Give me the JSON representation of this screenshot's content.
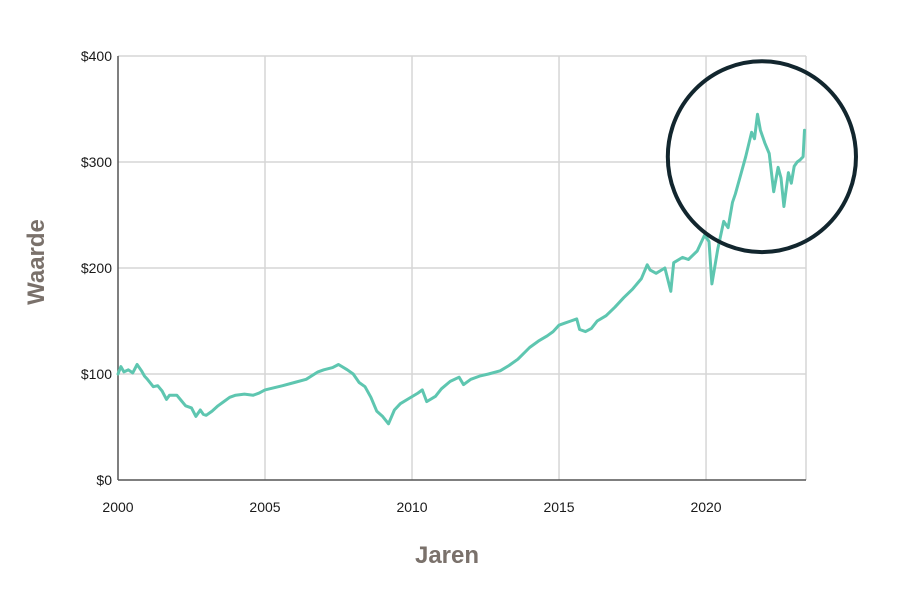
{
  "chart_data": {
    "type": "line",
    "title": "",
    "xlabel": "Jaren",
    "ylabel": "Waarde",
    "xlim": [
      2000,
      2023.4
    ],
    "ylim": [
      0,
      400
    ],
    "x_ticks": [
      2000,
      2005,
      2010,
      2015,
      2020
    ],
    "x_tick_labels": [
      "2000",
      "2005",
      "2010",
      "2015",
      "2020"
    ],
    "y_ticks": [
      0,
      100,
      200,
      300,
      400
    ],
    "y_tick_labels": [
      "$0",
      "$100",
      "$200",
      "$300",
      "$400"
    ],
    "grid": true,
    "legend": "none",
    "series": [
      {
        "color": "#5ec6b0",
        "x": [
          2000.0,
          2000.1,
          2000.2,
          2000.35,
          2000.5,
          2000.65,
          2000.8,
          2000.9,
          2001.0,
          2001.2,
          2001.35,
          2001.5,
          2001.65,
          2001.75,
          2002.0,
          2002.15,
          2002.3,
          2002.5,
          2002.65,
          2002.8,
          2002.9,
          2003.0,
          2003.2,
          2003.4,
          2003.6,
          2003.8,
          2004.0,
          2004.3,
          2004.6,
          2004.8,
          2005.0,
          2005.3,
          2005.6,
          2006.0,
          2006.4,
          2006.8,
          2007.0,
          2007.3,
          2007.5,
          2007.8,
          2008.0,
          2008.2,
          2008.4,
          2008.6,
          2008.8,
          2009.0,
          2009.2,
          2009.4,
          2009.6,
          2009.9,
          2010.2,
          2010.35,
          2010.5,
          2010.8,
          2011.0,
          2011.3,
          2011.6,
          2011.75,
          2012.0,
          2012.3,
          2012.6,
          2013.0,
          2013.3,
          2013.6,
          2014.0,
          2014.3,
          2014.6,
          2014.8,
          2015.0,
          2015.2,
          2015.4,
          2015.6,
          2015.7,
          2015.9,
          2016.1,
          2016.3,
          2016.6,
          2016.9,
          2017.2,
          2017.5,
          2017.8,
          2018.0,
          2018.1,
          2018.3,
          2018.6,
          2018.8,
          2018.9,
          2019.2,
          2019.4,
          2019.7,
          2019.95,
          2020.1,
          2020.2,
          2020.4,
          2020.6,
          2020.75,
          2020.9,
          2021.0,
          2021.2,
          2021.35,
          2021.55,
          2021.65,
          2021.75,
          2021.85,
          2022.0,
          2022.15,
          2022.3,
          2022.45,
          2022.55,
          2022.65,
          2022.8,
          2022.9,
          2023.0,
          2023.1,
          2023.2,
          2023.3,
          2023.35
        ],
        "y": [
          100,
          107,
          102,
          104,
          101,
          109,
          103,
          98,
          95,
          88,
          89,
          84,
          76,
          80,
          80,
          75,
          70,
          68,
          60,
          66,
          62,
          61,
          65,
          70,
          74,
          78,
          80,
          81,
          80,
          82,
          85,
          87,
          89,
          92,
          95,
          102,
          104,
          106,
          109,
          104,
          100,
          92,
          88,
          78,
          65,
          60,
          53,
          66,
          72,
          77,
          82,
          85,
          74,
          79,
          86,
          93,
          97,
          90,
          95,
          98,
          100,
          103,
          108,
          114,
          125,
          131,
          136,
          140,
          146,
          148,
          150,
          152,
          142,
          140,
          143,
          150,
          155,
          163,
          172,
          180,
          190,
          203,
          198,
          195,
          200,
          178,
          205,
          210,
          208,
          216,
          231,
          225,
          185,
          218,
          244,
          238,
          262,
          270,
          290,
          305,
          328,
          322,
          345,
          330,
          318,
          308,
          272,
          295,
          285,
          258,
          290,
          280,
          296,
          300,
          302,
          305,
          330
        ]
      }
    ],
    "annotations": [
      {
        "type": "circle",
        "cx": 2021.9,
        "cy": 305,
        "rx": 3.2,
        "ry": 90,
        "color": "#12262e"
      }
    ]
  }
}
